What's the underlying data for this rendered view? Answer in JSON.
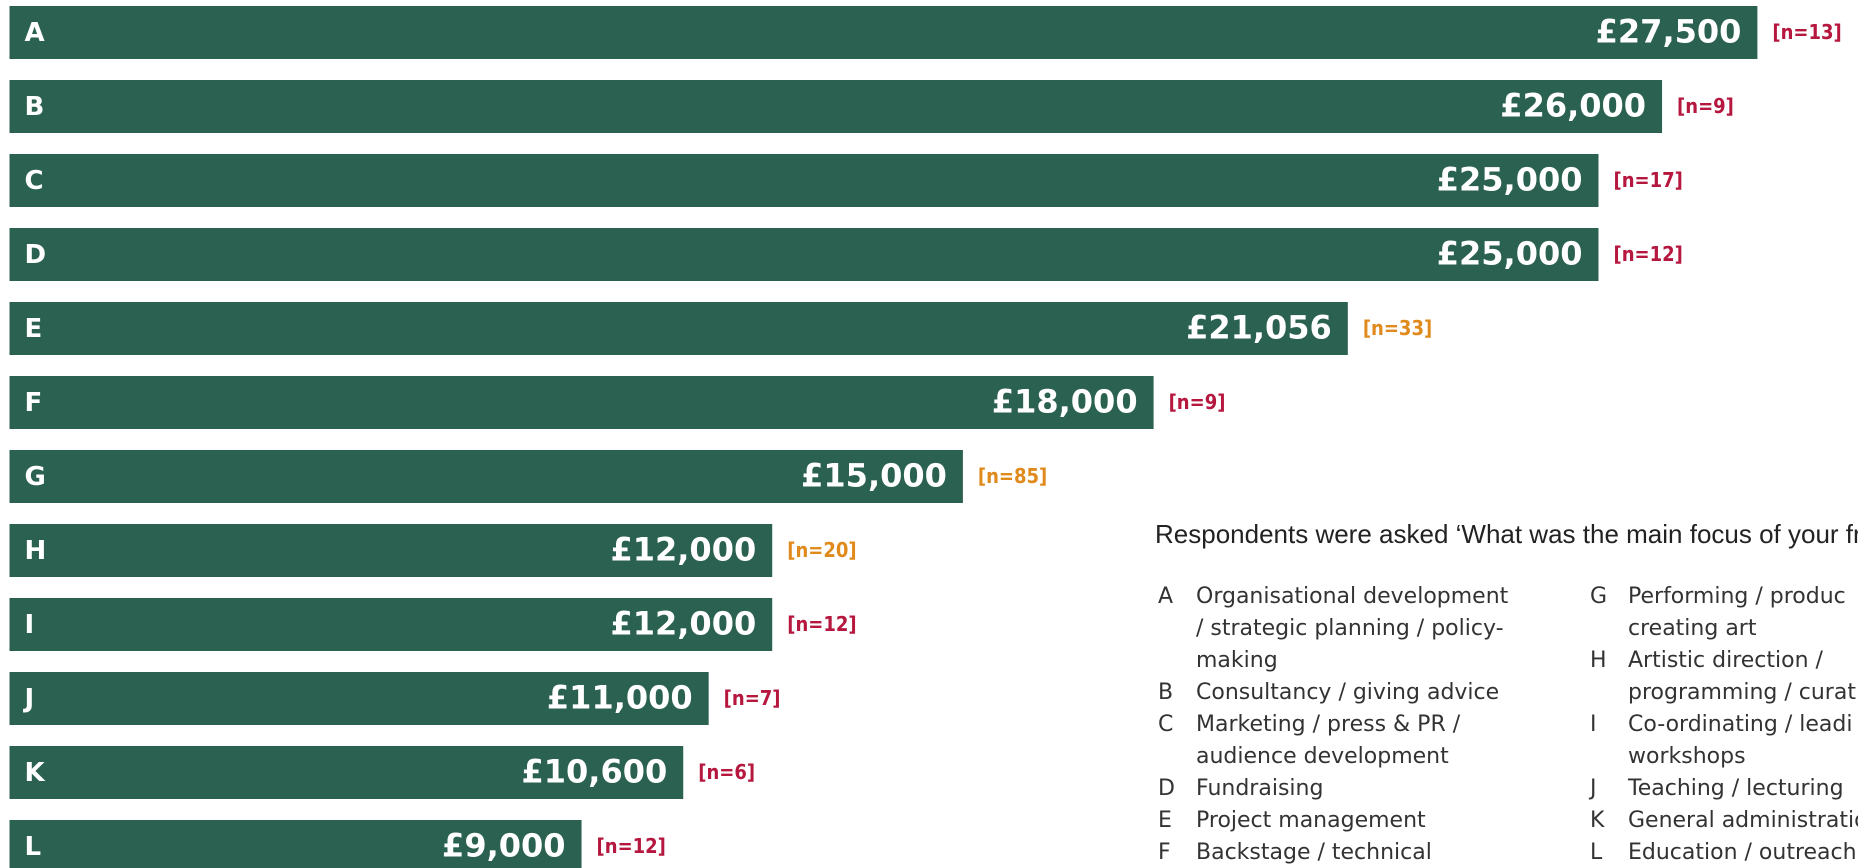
{
  "chart_data": {
    "type": "bar",
    "orientation": "horizontal",
    "categories": [
      "A",
      "B",
      "C",
      "D",
      "E",
      "F",
      "G",
      "H",
      "I",
      "J",
      "K",
      "L"
    ],
    "values": [
      27500,
      26000,
      25000,
      25000,
      21056,
      18000,
      15000,
      12000,
      12000,
      11000,
      10600,
      9000
    ],
    "value_labels": [
      "£27,500",
      "£26,000",
      "£25,000",
      "£25,000",
      "£21,056",
      "£18,000",
      "£15,000",
      "£12,000",
      "£12,000",
      "£11,000",
      "£10,600",
      "£9,000"
    ],
    "color": "#2b6150",
    "annotations": [
      "[n=13]",
      "[n=9]",
      "[n=17]",
      "[n=12]",
      "[n=33]",
      "[n=9]",
      "[n=85]",
      "[n=20]",
      "[n=12]",
      "[n=7]",
      "[n=6]",
      "[n=12]"
    ],
    "annotation_colors": [
      "#b5173e",
      "#b5173e",
      "#b5173e",
      "#b5173e",
      "#e08a1c",
      "#b5173e",
      "#e08a1c",
      "#e08a1c",
      "#b5173e",
      "#b5173e",
      "#b5173e",
      "#b5173e"
    ],
    "note": "Respondents were asked ‘What was the main focus of your freel",
    "key": [
      [
        {
          "letter": "A",
          "lines": [
            "Organisational development",
            "/ strategic planning / policy-",
            "making"
          ]
        },
        {
          "letter": "B",
          "lines": [
            "Consultancy / giving advice"
          ]
        },
        {
          "letter": "C",
          "lines": [
            "Marketing / press & PR /",
            "audience development"
          ]
        },
        {
          "letter": "D",
          "lines": [
            "Fundraising"
          ]
        },
        {
          "letter": "E",
          "lines": [
            "Project management"
          ]
        },
        {
          "letter": "F",
          "lines": [
            "Backstage / technical"
          ]
        }
      ],
      [
        {
          "letter": "G",
          "lines": [
            "Performing / produc",
            "creating art"
          ]
        },
        {
          "letter": "H",
          "lines": [
            "Artistic direction /",
            "programming / curat"
          ]
        },
        {
          "letter": "I",
          "lines": [
            "Co-ordinating / leadi",
            "workshops"
          ]
        },
        {
          "letter": "J",
          "lines": [
            "Teaching / lecturing"
          ]
        },
        {
          "letter": "K",
          "lines": [
            "General administratio"
          ]
        },
        {
          "letter": "L",
          "lines": [
            "Education / outreach"
          ]
        }
      ]
    ]
  }
}
